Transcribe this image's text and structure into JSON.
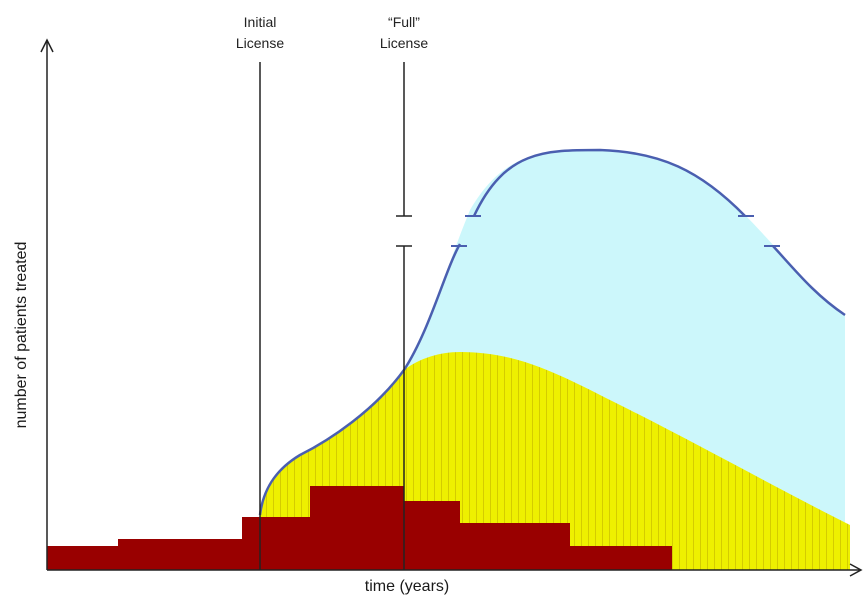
{
  "labels": {
    "initial_license_line1": "Initial",
    "initial_license_line2": "License",
    "full_license_line1": "“Full”",
    "full_license_line2": "License",
    "x_axis": "time (years)",
    "y_axis": "number of patients treated"
  },
  "colors": {
    "dark_red": "#990000",
    "yellow": "#eef000",
    "yellow_hatch": "#d8d200",
    "light_cyan": "#ccf7fb",
    "curve_blue": "#4a5fb0",
    "axis": "#222222"
  }
}
